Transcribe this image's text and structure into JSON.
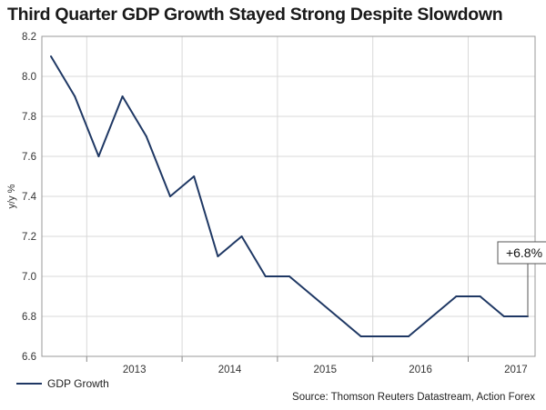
{
  "chart_data": {
    "type": "line",
    "title": "Third Quarter GDP Growth Stayed Strong Despite Slowdown",
    "xlabel": "",
    "ylabel": "y/y %",
    "ylim": [
      6.6,
      8.2
    ],
    "yticks": [
      "6.6",
      "6.8",
      "7.0",
      "7.2",
      "7.4",
      "7.6",
      "7.8",
      "8.0",
      "8.2"
    ],
    "xticks": [
      "2013",
      "2014",
      "2015",
      "2016",
      "2017"
    ],
    "grid": true,
    "legend_position": "bottom-left",
    "series": [
      {
        "name": "GDP Growth",
        "color": "#1f3864",
        "x": [
          "2012 Q3",
          "2012 Q4",
          "2013 Q1",
          "2013 Q2",
          "2013 Q3",
          "2013 Q4",
          "2014 Q1",
          "2014 Q2",
          "2014 Q3",
          "2014 Q4",
          "2015 Q1",
          "2015 Q2",
          "2015 Q3",
          "2015 Q4",
          "2016 Q1",
          "2016 Q2",
          "2016 Q3",
          "2016 Q4",
          "2017 Q1",
          "2017 Q2",
          "2017 Q3"
        ],
        "values": [
          8.1,
          7.9,
          7.6,
          7.9,
          7.7,
          7.4,
          7.5,
          7.1,
          7.2,
          7.0,
          7.0,
          6.9,
          6.8,
          6.7,
          6.7,
          6.7,
          6.8,
          6.9,
          6.9,
          6.8,
          6.8
        ]
      }
    ],
    "annotations": [
      {
        "text": "+6.8%",
        "series": "GDP Growth",
        "point_index": 20
      }
    ],
    "source": "Source: Thomson Reuters Datastream, Action Forex"
  }
}
